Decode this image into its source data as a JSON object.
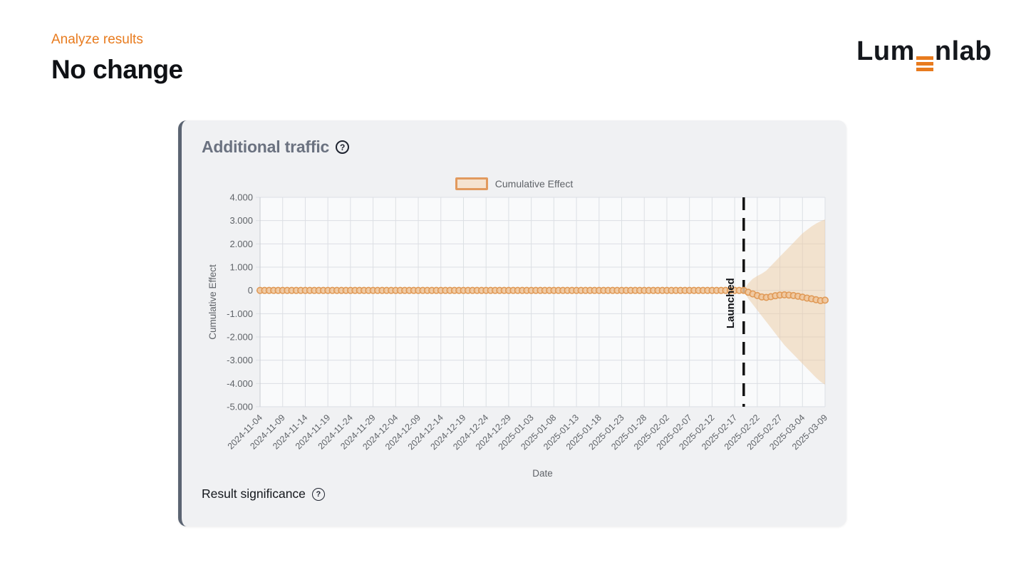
{
  "header": {
    "eyebrow": "Analyze results",
    "title": "No change"
  },
  "logo": {
    "prefix": "Lum",
    "suffix": "nlab"
  },
  "card": {
    "title": "Additional traffic",
    "help_glyph": "?",
    "footer_label": "Result significance"
  },
  "chart_data": {
    "type": "line",
    "title": "Additional traffic",
    "legend": "Cumulative Effect",
    "legend_position": "top-center",
    "xlabel": "Date",
    "ylabel": "Cumulative Effect",
    "grid": true,
    "ylim": [
      -5,
      4
    ],
    "ytick_values": [
      4,
      3,
      2,
      1,
      0,
      -1,
      -2,
      -3,
      -4,
      -5
    ],
    "ytick_labels": [
      "4.000",
      "3.000",
      "2.000",
      "1.000",
      "0",
      "-1.000",
      "-2.000",
      "-3.000",
      "-4.000",
      "-5.000"
    ],
    "start_date": "2024-11-04",
    "end_date": "2025-03-09",
    "n_days": 126,
    "xtick_interval_days": 5,
    "xtick_labels": [
      "2024-11-04",
      "2024-11-09",
      "2024-11-14",
      "2024-11-19",
      "2024-11-24",
      "2024-11-29",
      "2024-12-04",
      "2024-12-09",
      "2024-12-14",
      "2024-12-19",
      "2024-12-24",
      "2024-12-29",
      "2025-01-03",
      "2025-01-08",
      "2025-01-13",
      "2025-01-18",
      "2025-01-23",
      "2025-01-28",
      "2025-02-02",
      "2025-02-07",
      "2025-02-12",
      "2025-02-17",
      "2025-02-22",
      "2025-02-27",
      "2025-03-04",
      "2025-03-09"
    ],
    "launch": {
      "label": "Launched",
      "day_index": 107,
      "date": "2025-02-19"
    },
    "points": {
      "name": "Cumulative Effect",
      "baseline": 0,
      "pre_launch_days": 107,
      "post_launch_values": [
        0,
        -0.08,
        -0.15,
        -0.22,
        -0.28,
        -0.3,
        -0.27,
        -0.23,
        -0.2,
        -0.19,
        -0.2,
        -0.22,
        -0.25,
        -0.29,
        -0.33,
        -0.36,
        -0.4,
        -0.44,
        -0.42
      ]
    },
    "confidence_band": {
      "start_day_index": 107,
      "upper": [
        0,
        0.3,
        0.5,
        0.62,
        0.72,
        0.85,
        1.05,
        1.25,
        1.45,
        1.65,
        1.85,
        2.05,
        2.25,
        2.45,
        2.6,
        2.75,
        2.87,
        2.97,
        3.05
      ],
      "lower": [
        0,
        -0.35,
        -0.6,
        -0.85,
        -1.1,
        -1.35,
        -1.6,
        -1.85,
        -2.1,
        -2.35,
        -2.55,
        -2.75,
        -2.95,
        -3.15,
        -3.35,
        -3.55,
        -3.75,
        -3.92,
        -4.05
      ]
    },
    "colors": {
      "point_stroke": "#e09a57",
      "point_fill": "#f0c69b",
      "band_fill": "#eccaa2",
      "launch_line": "#111111",
      "grid": "#dcdfe4",
      "plot_bg": "#f9fafb",
      "axis_text": "#5f6368"
    }
  },
  "colors": {
    "accent_orange": "#e87b1e",
    "card_bg": "#f0f1f3",
    "card_left_border": "#5b6472",
    "title_gray": "#6b7280",
    "page_bg": "#ffffff"
  }
}
